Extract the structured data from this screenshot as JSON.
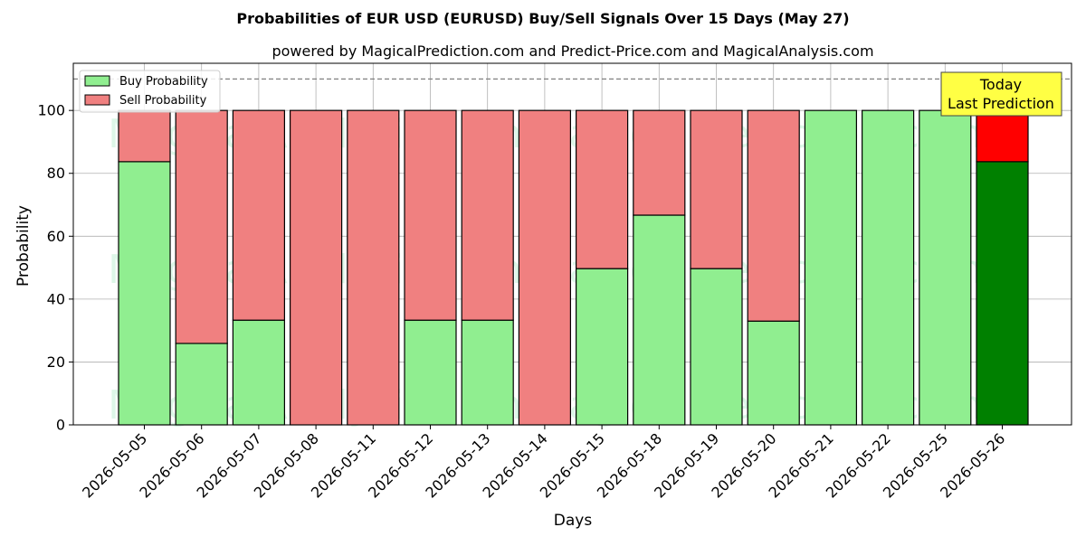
{
  "chart_data": {
    "type": "bar",
    "title": "Probabilities of EUR USD (EURUSD) Buy/Sell Signals Over 15 Days (May 27)",
    "subtitle": "powered by MagicalPrediction.com and Predict-Price.com and MagicalAnalysis.com",
    "xlabel": "Days",
    "ylabel": "Probability",
    "ylim": [
      0,
      115
    ],
    "yticks": [
      0,
      20,
      40,
      60,
      80,
      100
    ],
    "grid": true,
    "legend_position": "top-left",
    "reference_line": 110,
    "categories": [
      "2026-05-05",
      "2026-05-06",
      "2026-05-07",
      "2026-05-08",
      "2026-05-11",
      "2026-05-12",
      "2026-05-13",
      "2026-05-14",
      "2026-05-15",
      "2026-05-18",
      "2026-05-19",
      "2026-05-20",
      "2026-05-21",
      "2026-05-22",
      "2026-05-25",
      "2026-05-26"
    ],
    "series": [
      {
        "name": "Buy Probability",
        "color": "#90ee90",
        "values": [
          83.7,
          25.9,
          33.3,
          0,
          0,
          33.3,
          33.3,
          0,
          49.7,
          66.7,
          49.7,
          33,
          100,
          100,
          100,
          83.7
        ]
      },
      {
        "name": "Sell Probability",
        "color": "#f08080",
        "values": [
          16.3,
          74.1,
          66.7,
          100,
          100,
          66.7,
          66.7,
          100,
          50.3,
          33.3,
          50.3,
          67,
          0,
          0,
          0,
          16.3
        ]
      }
    ],
    "highlight": {
      "index": 15,
      "buy_color": "#008000",
      "sell_color": "#ff0000"
    },
    "annotation": {
      "line1": "Today",
      "line2": "Last Prediction",
      "background": "#ffff44"
    },
    "watermarks": [
      "MagicalAnalysis.com",
      "MagicalPrediction.com"
    ]
  }
}
